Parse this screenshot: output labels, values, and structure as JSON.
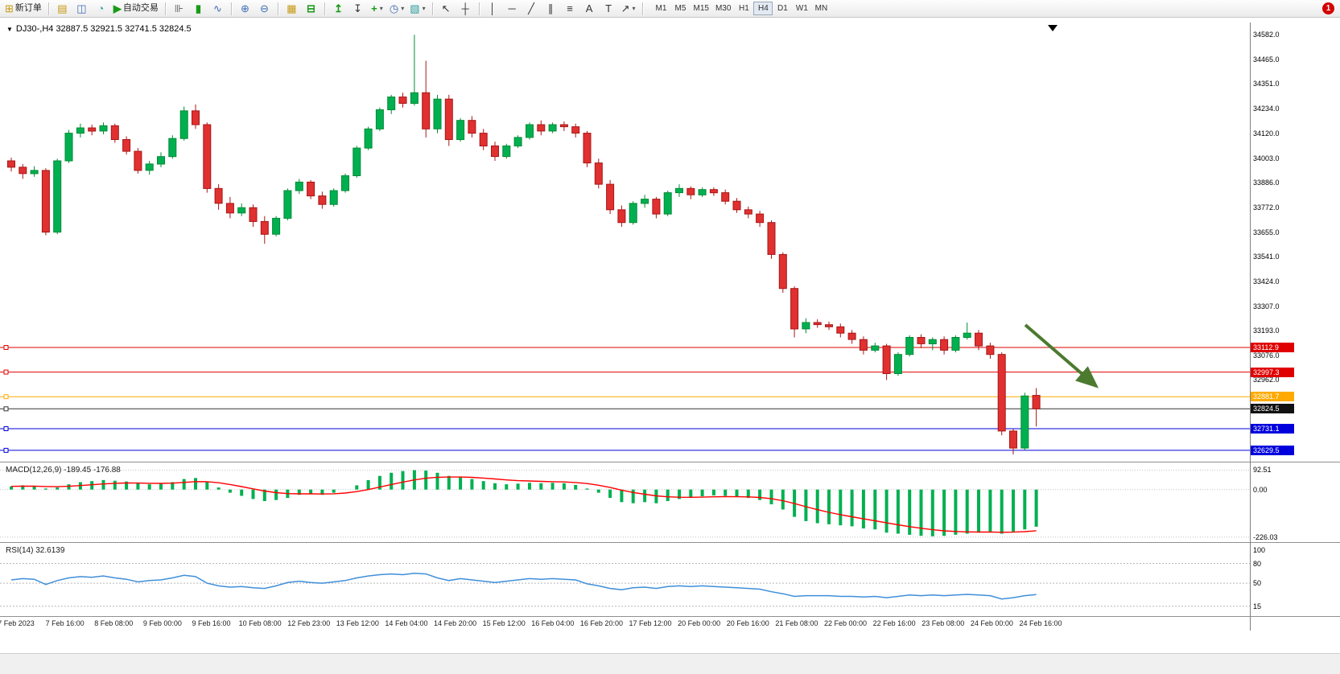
{
  "colors": {
    "up": "#00b050",
    "up_stroke": "#008a36",
    "down": "#e03030",
    "down_stroke": "#a81616",
    "macd_hist": "#00b050",
    "macd_signal": "#ff0000",
    "rsi": "#3f8fd9",
    "arrow": "#4c7a2f",
    "badge_red": "#d40000"
  },
  "toolbar": {
    "new_order_glyph": "⊞",
    "new_order_label": "新订单",
    "auto_trading_label": "自动交易",
    "icons": {
      "dropdown": "▾",
      "market_watch": "▤",
      "navigator": "◫",
      "terminal": "◔",
      "auto_trading_glyph": "▶",
      "bar_chart": "⊪",
      "candle_chart": "▮",
      "line_chart": "∿",
      "zoom_in": "⊕",
      "zoom_out": "⊖",
      "tile_windows": "▦",
      "arrange": "⊟",
      "indicator_up": "↥",
      "indicator_down": "↧",
      "add_indicator": "+",
      "clock": "◷",
      "template": "▧",
      "cursor": "↖",
      "crosshair": "┼",
      "vline": "│",
      "hline": "─",
      "trendline": "╱",
      "channel": "∥",
      "fibonacci": "≡",
      "text": "A",
      "label": "T",
      "arrows": "↗"
    },
    "timeframes": [
      "M1",
      "M5",
      "M15",
      "M30",
      "H1",
      "H4",
      "D1",
      "W1",
      "MN"
    ],
    "active_timeframe": "H4",
    "notification_count": "1"
  },
  "chart": {
    "toggle_glyph": "▼",
    "shift_marker": "▼",
    "symbol_line": "DJ30-,H4 32887.5 32921.5 32741.5 32824.5",
    "ohlc": {
      "open": "32887.5",
      "high": "32921.5",
      "low": "32741.5",
      "close": "32824.5"
    },
    "price_axis": [
      "34582.0",
      "34465.0",
      "34351.0",
      "34234.0",
      "34120.0",
      "34003.0",
      "33886.0",
      "33772.0",
      "33655.0",
      "33541.0",
      "33424.0",
      "33307.0",
      "33193.0",
      "33076.0",
      "32962.0"
    ],
    "hlines": [
      {
        "price": 33112.9,
        "label": "33112.9",
        "color": "#e00000",
        "badge": "#e00000"
      },
      {
        "price": 32997.3,
        "label": "32997.3",
        "color": "#e00000",
        "badge": "#e00000"
      },
      {
        "price": 32881.7,
        "label": "32881.7",
        "color": "#ffaa00",
        "badge": "#ffaa00"
      },
      {
        "price": 32824.5,
        "label": "32824.5",
        "color": "#333333",
        "badge": "#111111"
      },
      {
        "price": 32731.1,
        "label": "32731.1",
        "color": "#0000dd",
        "badge": "#0000dd"
      },
      {
        "price": 32629.5,
        "label": "32629.5",
        "color": "#0000dd",
        "badge": "#0000dd"
      }
    ],
    "time_labels": [
      "7 Feb 2023",
      "7 Feb 16:00",
      "8 Feb 08:00",
      "9 Feb 00:00",
      "9 Feb 16:00",
      "10 Feb 08:00",
      "12 Feb 23:00",
      "13 Feb 12:00",
      "14 Feb 04:00",
      "14 Feb 20:00",
      "15 Feb 12:00",
      "16 Feb 04:00",
      "16 Feb 20:00",
      "17 Feb 12:00",
      "20 Feb 00:00",
      "20 Feb 16:00",
      "21 Feb 08:00",
      "22 Feb 00:00",
      "22 Feb 16:00",
      "23 Feb 08:00",
      "24 Feb 00:00",
      "24 Feb 16:00"
    ],
    "candles": [
      [
        33990,
        34005,
        33940,
        33960
      ],
      [
        33960,
        33975,
        33905,
        33930
      ],
      [
        33930,
        33965,
        33915,
        33945
      ],
      [
        33945,
        33955,
        33640,
        33655
      ],
      [
        33655,
        34000,
        33645,
        33990
      ],
      [
        33990,
        34135,
        33980,
        34120
      ],
      [
        34120,
        34165,
        34100,
        34145
      ],
      [
        34145,
        34160,
        34110,
        34130
      ],
      [
        34130,
        34170,
        34115,
        34155
      ],
      [
        34155,
        34165,
        34075,
        34090
      ],
      [
        34090,
        34105,
        34020,
        34035
      ],
      [
        34035,
        34050,
        33930,
        33945
      ],
      [
        33945,
        33990,
        33925,
        33975
      ],
      [
        33975,
        34030,
        33960,
        34010
      ],
      [
        34010,
        34110,
        34000,
        34095
      ],
      [
        34095,
        34245,
        34085,
        34225
      ],
      [
        34225,
        34255,
        34140,
        34160
      ],
      [
        34160,
        34170,
        33840,
        33860
      ],
      [
        33860,
        33880,
        33760,
        33790
      ],
      [
        33790,
        33820,
        33720,
        33745
      ],
      [
        33745,
        33790,
        33730,
        33770
      ],
      [
        33770,
        33785,
        33680,
        33705
      ],
      [
        33705,
        33730,
        33600,
        33645
      ],
      [
        33645,
        33730,
        33635,
        33720
      ],
      [
        33720,
        33860,
        33710,
        33850
      ],
      [
        33850,
        33905,
        33835,
        33890
      ],
      [
        33890,
        33900,
        33810,
        33825
      ],
      [
        33825,
        33845,
        33765,
        33785
      ],
      [
        33785,
        33860,
        33775,
        33850
      ],
      [
        33850,
        33930,
        33840,
        33920
      ],
      [
        33920,
        34060,
        33910,
        34050
      ],
      [
        34050,
        34150,
        34040,
        34140
      ],
      [
        34140,
        34240,
        34130,
        34230
      ],
      [
        34230,
        34300,
        34210,
        34290
      ],
      [
        34290,
        34310,
        34240,
        34260
      ],
      [
        34260,
        34582,
        34250,
        34310
      ],
      [
        34310,
        34460,
        34100,
        34140
      ],
      [
        34140,
        34300,
        34120,
        34280
      ],
      [
        34280,
        34300,
        34060,
        34090
      ],
      [
        34090,
        34190,
        34080,
        34180
      ],
      [
        34180,
        34200,
        34100,
        34120
      ],
      [
        34120,
        34140,
        34040,
        34060
      ],
      [
        34060,
        34080,
        33990,
        34010
      ],
      [
        34010,
        34070,
        34000,
        34060
      ],
      [
        34060,
        34110,
        34050,
        34100
      ],
      [
        34100,
        34170,
        34090,
        34160
      ],
      [
        34160,
        34180,
        34110,
        34130
      ],
      [
        34130,
        34170,
        34120,
        34160
      ],
      [
        34160,
        34175,
        34130,
        34150
      ],
      [
        34150,
        34165,
        34100,
        34120
      ],
      [
        34120,
        34130,
        33960,
        33980
      ],
      [
        33980,
        34000,
        33860,
        33880
      ],
      [
        33880,
        33900,
        33740,
        33760
      ],
      [
        33760,
        33780,
        33680,
        33700
      ],
      [
        33700,
        33800,
        33690,
        33790
      ],
      [
        33790,
        33830,
        33770,
        33810
      ],
      [
        33810,
        33820,
        33720,
        33740
      ],
      [
        33740,
        33850,
        33730,
        33840
      ],
      [
        33840,
        33880,
        33820,
        33860
      ],
      [
        33860,
        33870,
        33810,
        33830
      ],
      [
        33830,
        33865,
        33820,
        33855
      ],
      [
        33855,
        33865,
        33825,
        33840
      ],
      [
        33840,
        33855,
        33785,
        33800
      ],
      [
        33800,
        33815,
        33745,
        33760
      ],
      [
        33760,
        33775,
        33720,
        33740
      ],
      [
        33740,
        33755,
        33680,
        33700
      ],
      [
        33700,
        33710,
        33530,
        33550
      ],
      [
        33550,
        33560,
        33370,
        33390
      ],
      [
        33390,
        33400,
        33160,
        33200
      ],
      [
        33200,
        33250,
        33180,
        33230
      ],
      [
        33230,
        33245,
        33205,
        33220
      ],
      [
        33220,
        33235,
        33195,
        33210
      ],
      [
        33210,
        33225,
        33160,
        33180
      ],
      [
        33180,
        33195,
        33130,
        33150
      ],
      [
        33150,
        33165,
        33080,
        33100
      ],
      [
        33100,
        33135,
        33090,
        33120
      ],
      [
        33120,
        33130,
        32960,
        32990
      ],
      [
        32990,
        33090,
        32980,
        33080
      ],
      [
        33080,
        33170,
        33070,
        33160
      ],
      [
        33160,
        33175,
        33110,
        33130
      ],
      [
        33130,
        33160,
        33100,
        33150
      ],
      [
        33150,
        33165,
        33080,
        33100
      ],
      [
        33100,
        33170,
        33090,
        33160
      ],
      [
        33160,
        33230,
        33150,
        33180
      ],
      [
        33180,
        33195,
        33100,
        33120
      ],
      [
        33120,
        33135,
        33060,
        33080
      ],
      [
        33080,
        33090,
        32700,
        32720
      ],
      [
        32720,
        32730,
        32610,
        32640
      ],
      [
        32640,
        32900,
        32630,
        32885
      ],
      [
        32887.5,
        32921.5,
        32741.5,
        32824.5
      ]
    ]
  },
  "macd": {
    "label": "MACD(12,26,9) -189.45 -176.88",
    "axis": [
      {
        "v": 92.51,
        "label": "92.51"
      },
      {
        "v": 0,
        "label": "0.00"
      },
      {
        "v": -226.03,
        "label": "-226.03"
      }
    ],
    "values": [
      15,
      20,
      18,
      5,
      10,
      25,
      35,
      40,
      45,
      42,
      38,
      30,
      25,
      28,
      35,
      50,
      55,
      35,
      10,
      -15,
      -30,
      -45,
      -55,
      -50,
      -40,
      -25,
      -20,
      -25,
      -15,
      0,
      20,
      45,
      65,
      80,
      88,
      92,
      90,
      80,
      65,
      60,
      50,
      40,
      30,
      25,
      28,
      32,
      30,
      32,
      30,
      22,
      5,
      -15,
      -40,
      -60,
      -65,
      -60,
      -65,
      -55,
      -45,
      -40,
      -32,
      -28,
      -30,
      -35,
      -40,
      -50,
      -70,
      -95,
      -130,
      -150,
      -160,
      -165,
      -170,
      -175,
      -185,
      -190,
      -205,
      -210,
      -215,
      -220,
      -222,
      -220,
      -215,
      -210,
      -205,
      -200,
      -210,
      -200,
      -190,
      -176.88
    ]
  },
  "rsi": {
    "label": "RSI(14) 32.6139",
    "axis": [
      {
        "v": 100,
        "label": "100"
      },
      {
        "v": 80,
        "label": "80"
      },
      {
        "v": 50,
        "label": "50"
      },
      {
        "v": 15,
        "label": "15"
      }
    ],
    "levels": [
      80,
      50,
      15
    ],
    "values": [
      55,
      57,
      56,
      48,
      54,
      58,
      60,
      59,
      61,
      58,
      56,
      52,
      54,
      55,
      58,
      62,
      60,
      50,
      46,
      44,
      45,
      43,
      42,
      46,
      51,
      53,
      51,
      50,
      52,
      54,
      58,
      61,
      63,
      64,
      63,
      65,
      64,
      58,
      54,
      57,
      55,
      53,
      51,
      53,
      55,
      57,
      56,
      57,
      56,
      55,
      49,
      46,
      42,
      40,
      43,
      44,
      42,
      45,
      46,
      45,
      46,
      45,
      44,
      43,
      42,
      41,
      37,
      34,
      30,
      31,
      31,
      31,
      30,
      30,
      29,
      30,
      28,
      30,
      32,
      31,
      32,
      31,
      32,
      33,
      32,
      31,
      26,
      28,
      31,
      32.6
    ]
  }
}
